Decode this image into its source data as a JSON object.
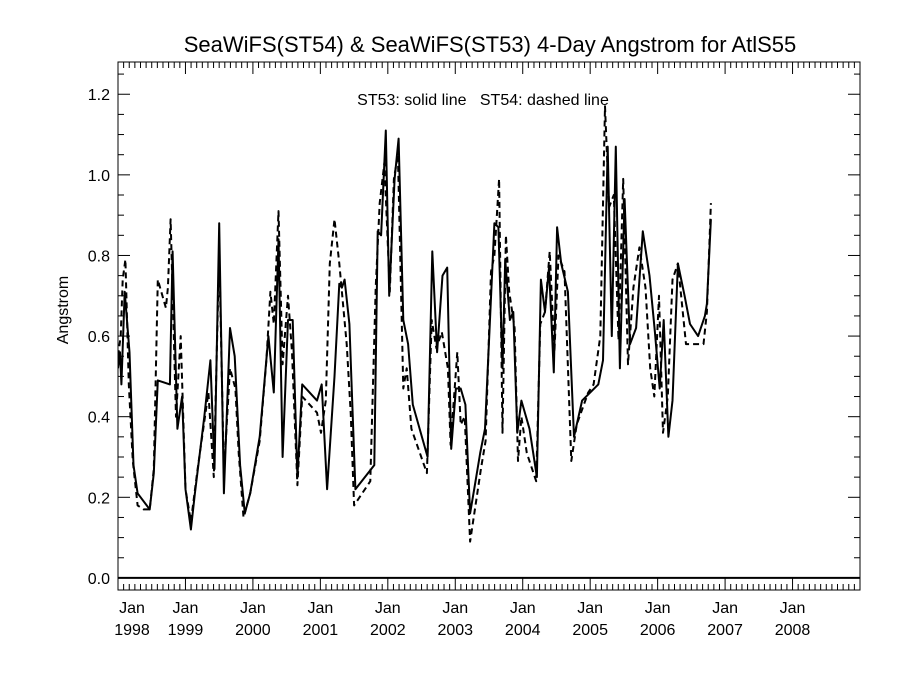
{
  "chart_data": {
    "type": "line",
    "title": "SeaWiFS(ST54) & SeaWiFS(ST53) 4-Day Angstrom for AtlS55",
    "annotation": "ST53: solid line   ST54: dashed line",
    "xlabel": "",
    "ylabel": "Angstrom",
    "xlim": [
      1998.0,
      2009.0
    ],
    "ylim": [
      -0.03,
      1.28
    ],
    "y_ticks": [
      0.0,
      0.2,
      0.4,
      0.6,
      0.8,
      1.0,
      1.2
    ],
    "y_tick_labels": [
      "0.0",
      "0.2",
      "0.4",
      "0.6",
      "0.8",
      "1.0",
      "1.2"
    ],
    "x_ticks": [
      {
        "month": "Jan",
        "year": "1998",
        "x": 1998.0
      },
      {
        "month": "Jan",
        "year": "1999",
        "x": 1999.0
      },
      {
        "month": "Jan",
        "year": "2000",
        "x": 2000.0
      },
      {
        "month": "Jan",
        "year": "2001",
        "x": 2001.0
      },
      {
        "month": "Jan",
        "year": "2002",
        "x": 2002.0
      },
      {
        "month": "Jan",
        "year": "2003",
        "x": 2003.0
      },
      {
        "month": "Jan",
        "year": "2004",
        "x": 2004.0
      },
      {
        "month": "Jan",
        "year": "2005",
        "x": 2005.0
      },
      {
        "month": "Jan",
        "year": "2006",
        "x": 2006.0
      },
      {
        "month": "Jan",
        "year": "2007",
        "x": 2007.0
      },
      {
        "month": "Jan",
        "year": "2008",
        "x": 2008.0
      }
    ],
    "grid": false,
    "series": [
      {
        "name": "ST53",
        "style": "solid",
        "color": "#000000",
        "points": [
          [
            1998.0,
            0.52
          ],
          [
            1998.03,
            0.56
          ],
          [
            1998.05,
            0.48
          ],
          [
            1998.1,
            0.71
          ],
          [
            1998.17,
            0.56
          ],
          [
            1998.23,
            0.28
          ],
          [
            1998.29,
            0.21
          ],
          [
            1998.47,
            0.17
          ],
          [
            1998.53,
            0.26
          ],
          [
            1998.59,
            0.49
          ],
          [
            1998.77,
            0.48
          ],
          [
            1998.81,
            0.81
          ],
          [
            1998.88,
            0.37
          ],
          [
            1998.95,
            0.45
          ],
          [
            1999.0,
            0.22
          ],
          [
            1999.08,
            0.12
          ],
          [
            1999.14,
            0.21
          ],
          [
            1999.28,
            0.4
          ],
          [
            1999.37,
            0.54
          ],
          [
            1999.43,
            0.27
          ],
          [
            1999.5,
            0.88
          ],
          [
            1999.57,
            0.21
          ],
          [
            1999.66,
            0.62
          ],
          [
            1999.73,
            0.55
          ],
          [
            1999.81,
            0.28
          ],
          [
            1999.88,
            0.16
          ],
          [
            1999.96,
            0.21
          ],
          [
            2000.1,
            0.35
          ],
          [
            2000.23,
            0.6
          ],
          [
            2000.31,
            0.46
          ],
          [
            2000.38,
            0.84
          ],
          [
            2000.44,
            0.3
          ],
          [
            2000.52,
            0.64
          ],
          [
            2000.59,
            0.64
          ],
          [
            2000.66,
            0.25
          ],
          [
            2000.73,
            0.48
          ],
          [
            2000.95,
            0.44
          ],
          [
            2001.02,
            0.48
          ],
          [
            2001.1,
            0.22
          ],
          [
            2001.21,
            0.5
          ],
          [
            2001.28,
            0.73
          ],
          [
            2001.32,
            0.72
          ],
          [
            2001.36,
            0.74
          ],
          [
            2001.43,
            0.63
          ],
          [
            2001.52,
            0.22
          ],
          [
            2001.8,
            0.28
          ],
          [
            2001.85,
            0.86
          ],
          [
            2001.9,
            0.85
          ],
          [
            2001.97,
            1.11
          ],
          [
            2002.02,
            0.7
          ],
          [
            2002.1,
            0.99
          ],
          [
            2002.16,
            1.09
          ],
          [
            2002.23,
            0.64
          ],
          [
            2002.3,
            0.58
          ],
          [
            2002.37,
            0.43
          ],
          [
            2002.59,
            0.3
          ],
          [
            2002.66,
            0.81
          ],
          [
            2002.73,
            0.56
          ],
          [
            2002.81,
            0.75
          ],
          [
            2002.88,
            0.77
          ],
          [
            2002.94,
            0.32
          ],
          [
            2003.01,
            0.47
          ],
          [
            2003.08,
            0.47
          ],
          [
            2003.15,
            0.43
          ],
          [
            2003.22,
            0.16
          ],
          [
            2003.28,
            0.22
          ],
          [
            2003.37,
            0.31
          ],
          [
            2003.44,
            0.37
          ],
          [
            2003.58,
            0.88
          ],
          [
            2003.64,
            0.87
          ],
          [
            2003.7,
            0.52
          ],
          [
            2003.74,
            0.79
          ],
          [
            2003.81,
            0.64
          ],
          [
            2003.86,
            0.66
          ],
          [
            2003.92,
            0.36
          ],
          [
            2003.98,
            0.44
          ],
          [
            2004.1,
            0.37
          ],
          [
            2004.21,
            0.25
          ],
          [
            2004.27,
            0.74
          ],
          [
            2004.33,
            0.66
          ],
          [
            2004.39,
            0.77
          ],
          [
            2004.46,
            0.51
          ],
          [
            2004.51,
            0.87
          ],
          [
            2004.57,
            0.78
          ],
          [
            2004.67,
            0.71
          ],
          [
            2004.76,
            0.35
          ],
          [
            2004.88,
            0.44
          ],
          [
            2005.12,
            0.48
          ],
          [
            2005.19,
            0.54
          ],
          [
            2005.26,
            1.07
          ],
          [
            2005.32,
            0.6
          ],
          [
            2005.38,
            1.07
          ],
          [
            2005.44,
            0.52
          ],
          [
            2005.51,
            0.94
          ],
          [
            2005.59,
            0.58
          ],
          [
            2005.68,
            0.62
          ],
          [
            2005.78,
            0.86
          ],
          [
            2005.88,
            0.75
          ],
          [
            2005.96,
            0.61
          ],
          [
            2006.03,
            0.47
          ],
          [
            2006.09,
            0.64
          ],
          [
            2006.16,
            0.35
          ],
          [
            2006.22,
            0.44
          ],
          [
            2006.3,
            0.78
          ],
          [
            2006.4,
            0.7
          ],
          [
            2006.48,
            0.63
          ],
          [
            2006.6,
            0.6
          ],
          [
            2006.7,
            0.65
          ],
          [
            2006.73,
            0.68
          ],
          [
            2006.79,
            0.89
          ]
        ]
      },
      {
        "name": "ST54",
        "style": "dashed",
        "color": "#000000",
        "points": [
          [
            1998.0,
            0.55
          ],
          [
            1998.04,
            0.6
          ],
          [
            1998.07,
            0.74
          ],
          [
            1998.11,
            0.79
          ],
          [
            1998.16,
            0.48
          ],
          [
            1998.22,
            0.29
          ],
          [
            1998.29,
            0.18
          ],
          [
            1998.38,
            0.17
          ],
          [
            1998.47,
            0.17
          ],
          [
            1998.53,
            0.27
          ],
          [
            1998.59,
            0.74
          ],
          [
            1998.71,
            0.67
          ],
          [
            1998.74,
            0.72
          ],
          [
            1998.78,
            0.89
          ],
          [
            1998.86,
            0.4
          ],
          [
            1998.93,
            0.6
          ],
          [
            1999.0,
            0.22
          ],
          [
            1999.08,
            0.14
          ],
          [
            1999.18,
            0.27
          ],
          [
            1999.34,
            0.46
          ],
          [
            1999.42,
            0.25
          ],
          [
            1999.5,
            0.81
          ],
          [
            1999.57,
            0.26
          ],
          [
            1999.66,
            0.52
          ],
          [
            1999.74,
            0.47
          ],
          [
            1999.79,
            0.31
          ],
          [
            1999.86,
            0.15
          ],
          [
            1999.96,
            0.21
          ],
          [
            2000.1,
            0.34
          ],
          [
            2000.2,
            0.54
          ],
          [
            2000.26,
            0.71
          ],
          [
            2000.31,
            0.63
          ],
          [
            2000.38,
            0.91
          ],
          [
            2000.44,
            0.53
          ],
          [
            2000.52,
            0.7
          ],
          [
            2000.58,
            0.56
          ],
          [
            2000.66,
            0.23
          ],
          [
            2000.73,
            0.45
          ],
          [
            2000.95,
            0.41
          ],
          [
            2001.01,
            0.36
          ],
          [
            2001.08,
            0.44
          ],
          [
            2001.14,
            0.78
          ],
          [
            2001.21,
            0.89
          ],
          [
            2001.28,
            0.78
          ],
          [
            2001.39,
            0.58
          ],
          [
            2001.45,
            0.41
          ],
          [
            2001.5,
            0.18
          ],
          [
            2001.74,
            0.24
          ],
          [
            2001.82,
            0.72
          ],
          [
            2001.88,
            0.93
          ],
          [
            2001.95,
            1.03
          ],
          [
            2002.03,
            0.71
          ],
          [
            2002.09,
            0.99
          ],
          [
            2002.15,
            1.05
          ],
          [
            2002.23,
            0.47
          ],
          [
            2002.28,
            0.52
          ],
          [
            2002.35,
            0.37
          ],
          [
            2002.58,
            0.26
          ],
          [
            2002.65,
            0.64
          ],
          [
            2002.72,
            0.57
          ],
          [
            2002.8,
            0.61
          ],
          [
            2002.89,
            0.52
          ],
          [
            2002.93,
            0.33
          ],
          [
            2003.03,
            0.56
          ],
          [
            2003.08,
            0.38
          ],
          [
            2003.14,
            0.4
          ],
          [
            2003.22,
            0.09
          ],
          [
            2003.3,
            0.18
          ],
          [
            2003.38,
            0.27
          ],
          [
            2003.45,
            0.34
          ],
          [
            2003.53,
            0.76
          ],
          [
            2003.58,
            0.8
          ],
          [
            2003.65,
            0.99
          ],
          [
            2003.7,
            0.36
          ],
          [
            2003.75,
            0.85
          ],
          [
            2003.8,
            0.71
          ],
          [
            2003.88,
            0.62
          ],
          [
            2003.93,
            0.29
          ],
          [
            2003.98,
            0.4
          ],
          [
            2004.06,
            0.31
          ],
          [
            2004.2,
            0.24
          ],
          [
            2004.26,
            0.63
          ],
          [
            2004.33,
            0.66
          ],
          [
            2004.4,
            0.81
          ],
          [
            2004.47,
            0.56
          ],
          [
            2004.53,
            0.8
          ],
          [
            2004.62,
            0.76
          ],
          [
            2004.72,
            0.29
          ],
          [
            2004.8,
            0.38
          ],
          [
            2004.97,
            0.46
          ],
          [
            2005.05,
            0.48
          ],
          [
            2005.15,
            0.6
          ],
          [
            2005.22,
            1.17
          ],
          [
            2005.28,
            0.92
          ],
          [
            2005.35,
            0.95
          ],
          [
            2005.42,
            0.59
          ],
          [
            2005.49,
            0.99
          ],
          [
            2005.56,
            0.53
          ],
          [
            2005.64,
            0.72
          ],
          [
            2005.73,
            0.82
          ],
          [
            2005.82,
            0.72
          ],
          [
            2005.89,
            0.52
          ],
          [
            2005.95,
            0.45
          ],
          [
            2006.02,
            0.7
          ],
          [
            2006.08,
            0.36
          ],
          [
            2006.15,
            0.45
          ],
          [
            2006.22,
            0.74
          ],
          [
            2006.3,
            0.78
          ],
          [
            2006.42,
            0.58
          ],
          [
            2006.55,
            0.58
          ],
          [
            2006.68,
            0.58
          ],
          [
            2006.73,
            0.66
          ],
          [
            2006.79,
            0.93
          ]
        ]
      }
    ]
  }
}
